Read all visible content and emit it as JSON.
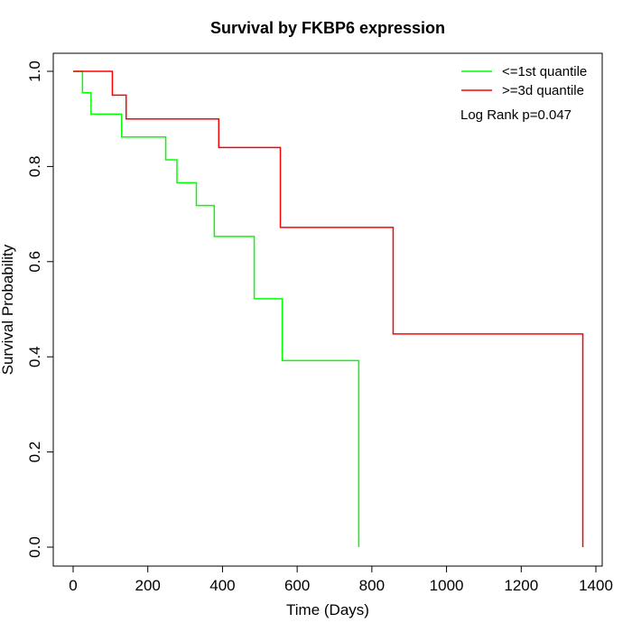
{
  "chart_data": {
    "type": "line",
    "title": "Survival by FKBP6 expression",
    "xlabel": "Time (Days)",
    "ylabel": "Survival Probability",
    "xlim": [
      0,
      1400
    ],
    "ylim": [
      0,
      1
    ],
    "x_ticks": [
      0,
      200,
      400,
      600,
      800,
      1000,
      1200,
      1400
    ],
    "y_ticks": [
      0.0,
      0.2,
      0.4,
      0.6,
      0.8,
      1.0
    ],
    "x_tick_labels": [
      "0",
      "200",
      "400",
      "600",
      "800",
      "1000",
      "1200",
      "1400"
    ],
    "y_tick_labels": [
      "0.0",
      "0.2",
      "0.4",
      "0.6",
      "0.8",
      "1.0"
    ],
    "grid": false,
    "legend_position": "top-right",
    "annotation": "Log Rank p=0.047",
    "series": [
      {
        "name": "<=1st quantile",
        "color": "#00ff00",
        "step_x": [
          0,
          25,
          48,
          130,
          248,
          278,
          330,
          378,
          485,
          560,
          765
        ],
        "step_y": [
          1.0,
          0.955,
          0.91,
          0.862,
          0.814,
          0.766,
          0.718,
          0.653,
          0.522,
          0.392,
          0.0
        ]
      },
      {
        "name": ">=3d quantile",
        "color": "#ff0000",
        "step_x": [
          0,
          105,
          142,
          390,
          555,
          857,
          1365
        ],
        "step_y": [
          1.0,
          0.95,
          0.9,
          0.84,
          0.672,
          0.448,
          0.0
        ]
      }
    ]
  }
}
